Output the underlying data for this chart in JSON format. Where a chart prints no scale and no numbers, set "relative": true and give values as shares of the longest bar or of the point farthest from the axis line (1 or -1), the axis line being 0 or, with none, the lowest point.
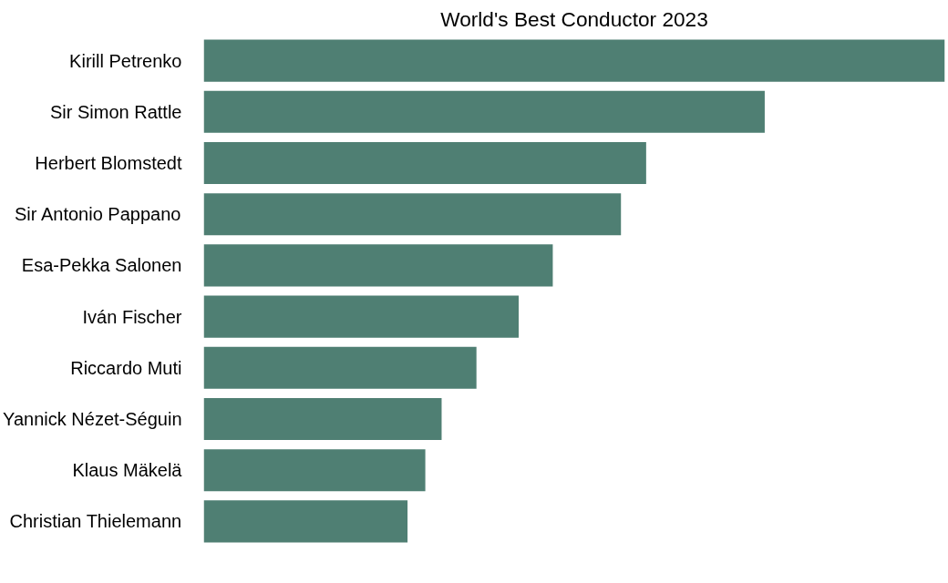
{
  "chart_data": {
    "type": "bar",
    "orientation": "horizontal",
    "relative": true,
    "title": "World's Best Conductor 2023",
    "categories": [
      "Kirill Petrenko",
      "Sir Simon Rattle",
      "Herbert Blomstedt",
      "Sir Antonio Pappano",
      "Esa-Pekka Salonen",
      "Iván Fischer",
      "Riccardo Muti",
      "Yannick Nézet-Séguin",
      "Klaus Mäkelä",
      "Christian Thielemann"
    ],
    "values": [
      1,
      0.757,
      0.597,
      0.563,
      0.471,
      0.425,
      0.368,
      0.321,
      0.299,
      0.275
    ],
    "color": "#4f7f73",
    "grid": false
  }
}
